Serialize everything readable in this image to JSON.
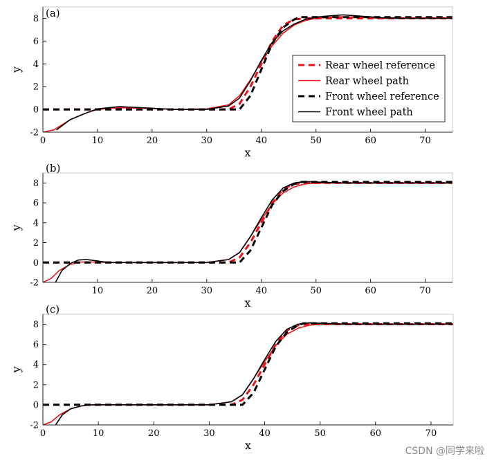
{
  "watermark": "CSDN @同学来啦",
  "colors": {
    "rear": "#e8141a",
    "front": "#000000",
    "axis": "#222222"
  },
  "chart_data": [
    {
      "type": "line",
      "panel_label": "(a)",
      "xlabel": "x",
      "ylabel": "y",
      "xlim": [
        0,
        75
      ],
      "ylim": [
        -2,
        9
      ],
      "xticks": [
        0,
        10,
        20,
        30,
        40,
        50,
        60,
        70
      ],
      "yticks": [
        -2,
        0,
        2,
        4,
        6,
        8
      ],
      "grid": false,
      "legend": {
        "position": "right-middle",
        "entries": [
          "Rear wheel reference",
          "Rear wheel path",
          "Front wheel reference",
          "Front wheel path"
        ]
      },
      "series": [
        {
          "name": "Rear wheel reference",
          "color": "#e8141a",
          "style": "dashed",
          "x": [
            0,
            34,
            36,
            38,
            40,
            42,
            44,
            46,
            48,
            50,
            75
          ],
          "y": [
            0,
            0,
            0.5,
            2.0,
            4.0,
            6.0,
            7.4,
            7.9,
            8.0,
            8.0,
            8.0
          ]
        },
        {
          "name": "Rear wheel path",
          "color": "#e8141a",
          "style": "solid",
          "x": [
            0,
            2,
            5,
            8,
            10,
            14,
            18,
            24,
            30,
            34,
            36,
            38,
            40,
            42,
            44,
            46,
            48,
            50,
            54,
            58,
            62,
            66,
            75
          ],
          "y": [
            -2.0,
            -1.8,
            -0.9,
            -0.3,
            0.0,
            0.15,
            0.1,
            0.0,
            0.05,
            0.4,
            1.2,
            2.6,
            4.2,
            5.6,
            6.7,
            7.4,
            7.8,
            8.0,
            8.15,
            8.1,
            8.0,
            8.0,
            8.0
          ]
        },
        {
          "name": "Front wheel reference",
          "color": "#000000",
          "style": "dashed",
          "x": [
            0,
            36,
            38,
            40,
            42,
            44,
            46,
            47,
            75
          ],
          "y": [
            0,
            0,
            1.2,
            3.5,
            5.8,
            7.2,
            7.9,
            8.1,
            8.1
          ]
        },
        {
          "name": "Front wheel path",
          "color": "#000000",
          "style": "solid",
          "x": [
            2.5,
            5,
            8,
            10,
            14,
            18,
            24,
            30,
            34,
            36,
            38,
            40,
            42,
            44,
            46,
            48,
            50,
            52,
            55,
            58,
            62,
            66,
            75
          ],
          "y": [
            -1.8,
            -0.9,
            -0.3,
            0.05,
            0.25,
            0.15,
            0.0,
            0.0,
            0.3,
            1.0,
            2.5,
            4.3,
            5.9,
            6.9,
            7.5,
            7.9,
            8.1,
            8.2,
            8.3,
            8.2,
            8.05,
            8.0,
            8.0
          ]
        }
      ]
    },
    {
      "type": "line",
      "panel_label": "(b)",
      "xlabel": "x",
      "ylabel": "y",
      "xlim": [
        0,
        75
      ],
      "ylim": [
        -2,
        9
      ],
      "xticks": [
        10,
        20,
        30,
        40,
        50,
        60,
        70
      ],
      "yticks": [
        -2,
        0,
        2,
        4,
        6,
        8
      ],
      "grid": false,
      "series": [
        {
          "name": "Rear wheel reference",
          "color": "#e8141a",
          "style": "dashed",
          "x": [
            0,
            34,
            36,
            38,
            40,
            42,
            44,
            46,
            48,
            50,
            75
          ],
          "y": [
            0,
            0,
            0.5,
            2.0,
            4.0,
            6.0,
            7.4,
            7.9,
            8.0,
            8.0,
            8.0
          ]
        },
        {
          "name": "Rear wheel path",
          "color": "#e8141a",
          "style": "solid",
          "x": [
            0,
            1.5,
            3,
            5,
            7,
            9,
            12,
            20,
            30,
            34,
            36,
            38,
            40,
            42,
            44,
            46,
            48,
            50,
            55,
            75
          ],
          "y": [
            -2.0,
            -1.6,
            -0.8,
            -0.2,
            0.05,
            0.05,
            0.0,
            0.0,
            0.0,
            0.3,
            1.0,
            2.6,
            4.3,
            5.9,
            7.0,
            7.6,
            7.9,
            8.0,
            8.0,
            8.0
          ]
        },
        {
          "name": "Front wheel reference",
          "color": "#000000",
          "style": "dashed",
          "x": [
            0,
            36,
            38,
            40,
            42,
            44,
            46,
            47,
            75
          ],
          "y": [
            0,
            0,
            1.2,
            3.5,
            5.8,
            7.2,
            7.9,
            8.1,
            8.1
          ]
        },
        {
          "name": "Front wheel path",
          "color": "#000000",
          "style": "solid",
          "x": [
            2.3,
            3.5,
            5,
            6.5,
            8,
            10,
            12,
            20,
            30,
            34,
            36,
            38,
            40,
            42,
            44,
            46,
            48,
            50,
            55,
            75
          ],
          "y": [
            -2.0,
            -0.8,
            -0.1,
            0.25,
            0.3,
            0.15,
            0.0,
            0.0,
            0.0,
            0.3,
            1.0,
            2.6,
            4.5,
            6.3,
            7.5,
            8.0,
            8.15,
            8.1,
            8.0,
            8.0
          ]
        }
      ]
    },
    {
      "type": "line",
      "panel_label": "(c)",
      "xlabel": "x",
      "ylabel": "y",
      "xlim": [
        0,
        74
      ],
      "ylim": [
        -2,
        9
      ],
      "xticks": [
        0,
        10,
        20,
        30,
        40,
        50,
        60,
        70
      ],
      "yticks": [
        -2,
        0,
        2,
        4,
        6,
        8
      ],
      "grid": false,
      "series": [
        {
          "name": "Rear wheel reference",
          "color": "#e8141a",
          "style": "dashed",
          "x": [
            0,
            34,
            36,
            38,
            40,
            42,
            44,
            46,
            48,
            50,
            74
          ],
          "y": [
            0,
            0,
            0.5,
            2.0,
            4.0,
            6.0,
            7.4,
            7.9,
            8.0,
            8.0,
            8.0
          ]
        },
        {
          "name": "Rear wheel path",
          "color": "#e8141a",
          "style": "solid",
          "x": [
            0,
            1.5,
            3,
            5,
            7,
            9,
            12,
            20,
            30,
            34,
            36,
            38,
            40,
            42,
            44,
            46,
            48,
            50,
            55,
            74
          ],
          "y": [
            -2.0,
            -1.7,
            -1.0,
            -0.4,
            -0.1,
            0.0,
            0.0,
            0.0,
            0.0,
            0.3,
            1.0,
            2.6,
            4.3,
            5.9,
            7.0,
            7.6,
            7.9,
            8.0,
            8.0,
            8.0
          ]
        },
        {
          "name": "Front wheel reference",
          "color": "#000000",
          "style": "dashed",
          "x": [
            0,
            36,
            38,
            40,
            42,
            44,
            46,
            47,
            74
          ],
          "y": [
            0,
            0,
            1.2,
            3.5,
            5.8,
            7.2,
            7.9,
            8.1,
            8.1
          ]
        },
        {
          "name": "Front wheel path",
          "color": "#000000",
          "style": "solid",
          "x": [
            2.3,
            3.5,
            5,
            7,
            9,
            12,
            20,
            30,
            34,
            36,
            38,
            40,
            42,
            44,
            46,
            48,
            50,
            55,
            74
          ],
          "y": [
            -2.0,
            -1.0,
            -0.4,
            -0.1,
            0.0,
            0.0,
            0.0,
            0.0,
            0.3,
            1.0,
            2.6,
            4.5,
            6.3,
            7.5,
            8.0,
            8.15,
            8.1,
            8.0,
            8.0
          ]
        }
      ]
    }
  ]
}
